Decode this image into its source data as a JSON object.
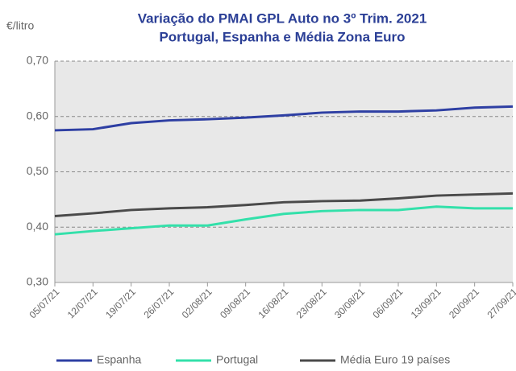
{
  "chart_data": {
    "type": "line",
    "title": "Variação do PMAI GPL Auto no 3º Trim. 2021",
    "subtitle": "Portugal, Espanha e Média Zona Euro",
    "y_label": "€/litro",
    "categories": [
      "05/07/21",
      "12/07/21",
      "19/07/21",
      "26/07/21",
      "02/08/21",
      "09/08/21",
      "16/08/21",
      "23/08/21",
      "30/08/21",
      "06/09/21",
      "13/09/21",
      "20/09/21",
      "27/09/21"
    ],
    "series": [
      {
        "name": "Espanha",
        "color": "#2e3fa3",
        "values": [
          0.575,
          0.577,
          0.588,
          0.593,
          0.595,
          0.598,
          0.602,
          0.607,
          0.609,
          0.609,
          0.611,
          0.616,
          0.618
        ]
      },
      {
        "name": "Portugal",
        "color": "#33e0aa",
        "values": [
          0.387,
          0.393,
          0.398,
          0.403,
          0.403,
          0.414,
          0.424,
          0.429,
          0.431,
          0.431,
          0.437,
          0.434,
          0.434
        ]
      },
      {
        "name": "Média Euro 19 países",
        "color": "#4a4a4a",
        "values": [
          0.42,
          0.425,
          0.431,
          0.434,
          0.436,
          0.44,
          0.445,
          0.447,
          0.448,
          0.452,
          0.457,
          0.459,
          0.461
        ]
      }
    ],
    "ylim": [
      0.3,
      0.7
    ],
    "yticks": [
      {
        "value": 0.3,
        "label": "0,30"
      },
      {
        "value": 0.4,
        "label": "0,40"
      },
      {
        "value": 0.5,
        "label": "0,50"
      },
      {
        "value": 0.6,
        "label": "0,60"
      },
      {
        "value": 0.7,
        "label": "0,70"
      }
    ],
    "grid": true
  }
}
